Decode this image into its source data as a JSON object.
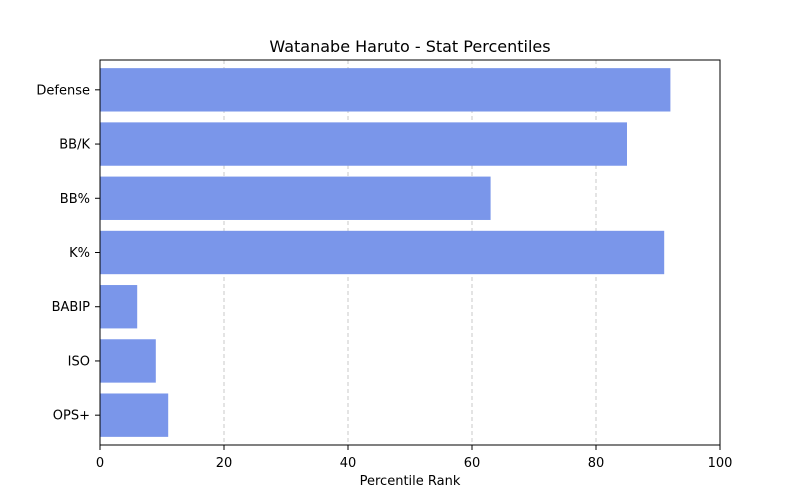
{
  "chart_data": {
    "type": "bar",
    "orientation": "horizontal",
    "title": "Watanabe Haruto - Stat Percentiles",
    "xlabel": "Percentile Rank",
    "ylabel": "",
    "xlim": [
      0,
      100
    ],
    "xticks": [
      "0",
      "20",
      "40",
      "60",
      "80",
      "100"
    ],
    "grid": "x-dashed",
    "categories": [
      "OPS+",
      "ISO",
      "BABIP",
      "K%",
      "BB%",
      "BB/K",
      "Defense"
    ],
    "values": [
      11,
      9,
      6,
      91,
      63,
      85,
      92
    ],
    "colors": {
      "bar": "#7a96ea",
      "grid": "#c8c8c8",
      "axis": "#000000"
    }
  }
}
